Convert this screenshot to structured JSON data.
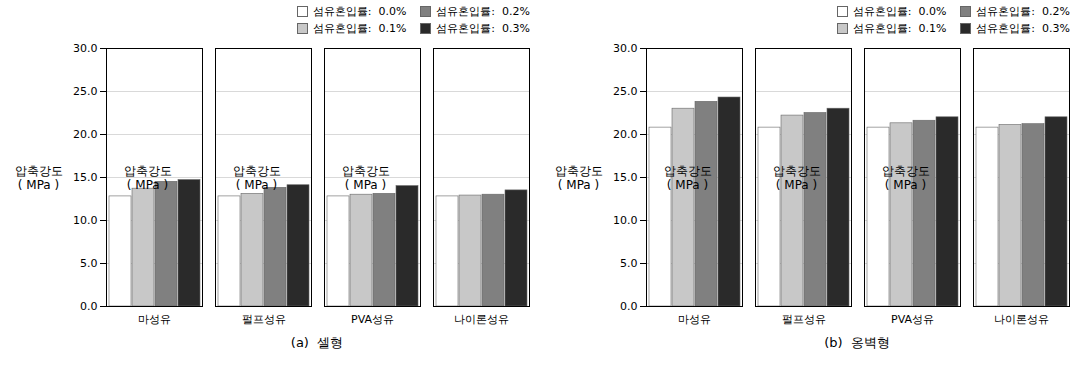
{
  "chart_data": [
    {
      "type": "bar",
      "title": "(a)  셀형",
      "ylabel": "압축강도\n( MPa )",
      "categories": [
        "마성유",
        "펄프성유",
        "PVA성유",
        "나이론성유"
      ],
      "series": [
        {
          "name": "섬유혼입률:  0.0%",
          "color": "#ffffff",
          "values": [
            12.8,
            12.8,
            12.8,
            12.8
          ]
        },
        {
          "name": "섬유혼입률:  0.1%",
          "color": "#c8c8c8",
          "values": [
            13.7,
            13.1,
            13.0,
            12.9
          ]
        },
        {
          "name": "섬유혼입률:  0.2%",
          "color": "#808080",
          "values": [
            14.5,
            13.8,
            13.1,
            13.0
          ]
        },
        {
          "name": "섬유혼입률:  0.3%",
          "color": "#2a2a2a",
          "values": [
            14.7,
            14.1,
            14.0,
            13.5
          ]
        }
      ],
      "ylim": [
        0,
        30
      ],
      "yticks": [
        {
          "value": 0,
          "label": "0.0"
        },
        {
          "value": 5,
          "label": "5.0"
        },
        {
          "value": 10,
          "label": "10.0"
        },
        {
          "value": 15,
          "label": "15.0"
        },
        {
          "value": 20,
          "label": "20.0"
        },
        {
          "value": 25,
          "label": "25.0"
        },
        {
          "value": 30,
          "label": "30.0"
        }
      ],
      "grid": true,
      "legend": "upper right"
    },
    {
      "type": "bar",
      "title": "(b)  옹벽형",
      "ylabel": "압축강도\n( MPa )",
      "categories": [
        "마성유",
        "펄프성유",
        "PVA성유",
        "나이론성유"
      ],
      "series": [
        {
          "name": "섬유혼입률:  0.0%",
          "color": "#ffffff",
          "values": [
            20.8,
            20.8,
            20.8,
            20.8
          ]
        },
        {
          "name": "섬유혼입률:  0.1%",
          "color": "#c8c8c8",
          "values": [
            23.0,
            22.2,
            21.3,
            21.1
          ]
        },
        {
          "name": "섬유혼입률:  0.2%",
          "color": "#808080",
          "values": [
            23.8,
            22.5,
            21.6,
            21.2
          ]
        },
        {
          "name": "섬유혼입률:  0.3%",
          "color": "#2a2a2a",
          "values": [
            24.3,
            23.0,
            22.0,
            22.0
          ]
        }
      ],
      "ylim": [
        0,
        30
      ],
      "yticks": [
        {
          "value": 0,
          "label": "0.0"
        },
        {
          "value": 5,
          "label": "5.0"
        },
        {
          "value": 10,
          "label": "10.0"
        },
        {
          "value": 15,
          "label": "15.0"
        },
        {
          "value": 20,
          "label": "20.0"
        },
        {
          "value": 25,
          "label": "25.0"
        },
        {
          "value": 30,
          "label": "30.0"
        }
      ],
      "grid": true,
      "legend": "upper right"
    }
  ]
}
